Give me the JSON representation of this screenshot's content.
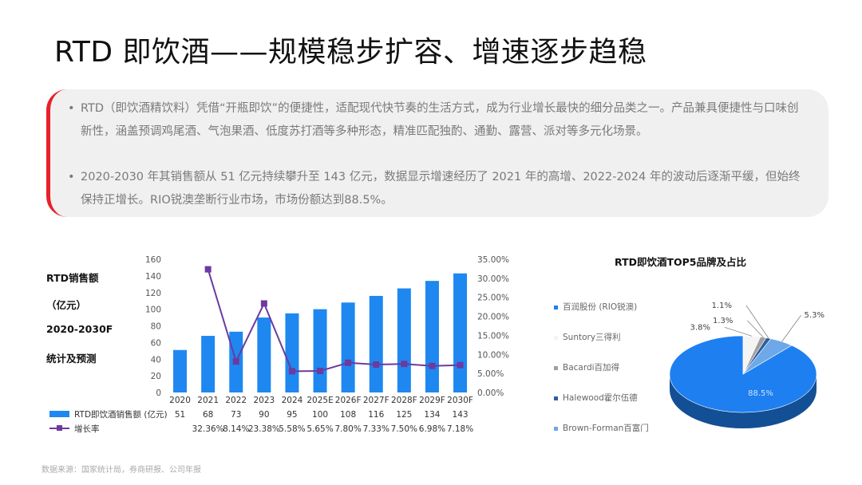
{
  "title": "RTD 即饮酒——规模稳步扩容、增速逐步趋稳",
  "bullets": {
    "dot": "•",
    "b1": "RTD（即饮酒精饮料）凭借“开瓶即饮”的便捷性，适配现代快节奏的生活方式，成为行业增长最快的细分品类之一。产品兼具便捷性与口味创新性，涵盖预调鸡尾酒、气泡果酒、低度苏打酒等多种形态，精准匹配独酌、通勤、露营、派对等多元化场景。",
    "b2": "2020-2030 年其销售额从 51 亿元持续攀升至 143 亿元，数据显示增速经历了 2021 年的高增、2022-2024 年的波动后逐渐平缓，但始终保持正增长。RIO锐澳垄断行业市场，市场份额达到88.5%。"
  },
  "left_label": {
    "l1": "RTD销售额",
    "l2": "（亿元）",
    "l3": "2020-2030F",
    "l4": "统计及预测"
  },
  "source": "数据来源：国家统计局，券商研报、公司年报",
  "colors": {
    "bar": "#1e88f0",
    "line": "#6c3aa0",
    "pie_main": "#1e7ff0",
    "accent": "#e8202a"
  },
  "chart_data": [
    {
      "type": "bar",
      "categories": [
        "2020",
        "2021",
        "2022",
        "2023",
        "2024",
        "2025E",
        "2026F",
        "2027F",
        "2028F",
        "2029F",
        "2030F"
      ],
      "series": [
        {
          "name": "RTD即饮酒销售额 (亿元)",
          "type": "bar",
          "axis": "left",
          "values": [
            51,
            68,
            73,
            90,
            95,
            100,
            108,
            116,
            125,
            134,
            143
          ]
        },
        {
          "name": "增长率",
          "type": "line",
          "axis": "right",
          "values": [
            null,
            32.36,
            8.14,
            23.38,
            5.58,
            5.65,
            7.8,
            7.33,
            7.5,
            6.98,
            7.18
          ],
          "labels": [
            "",
            "32.36%",
            "8.14%",
            "23.38%",
            "5.58%",
            "5.65%",
            "7.80%",
            "7.33%",
            "7.50%",
            "6.98%",
            "7.18%"
          ]
        }
      ],
      "y_left_ticks": [
        "0",
        "20",
        "40",
        "60",
        "80",
        "100",
        "120",
        "140",
        "160"
      ],
      "y_right_ticks": [
        "0.00%",
        "5.00%",
        "10.00%",
        "15.00%",
        "20.00%",
        "25.00%",
        "30.00%",
        "35.00%"
      ],
      "ylim_left": [
        0,
        160
      ],
      "ylim_right": [
        0,
        35
      ],
      "table": true,
      "legend": "bottom-left"
    },
    {
      "type": "pie",
      "title": "RTD即饮酒TOP5品牌及占比",
      "labels": [
        "百润股份 (RIO锐澳)",
        "Suntory三得利",
        "Bacardi百加得",
        "Halewood霍尔伍德",
        "Brown-Forman百富门"
      ],
      "values": [
        88.5,
        3.8,
        1.3,
        1.1,
        5.3
      ],
      "value_labels": [
        "88.5%",
        "3.8%",
        "1.3%",
        "1.1%",
        "5.3%"
      ],
      "colors": [
        "#1e7ff0",
        "#f4f4f4",
        "#a0a0a0",
        "#2f5f9e",
        "#6fa8e8"
      ],
      "legend": "left"
    }
  ]
}
